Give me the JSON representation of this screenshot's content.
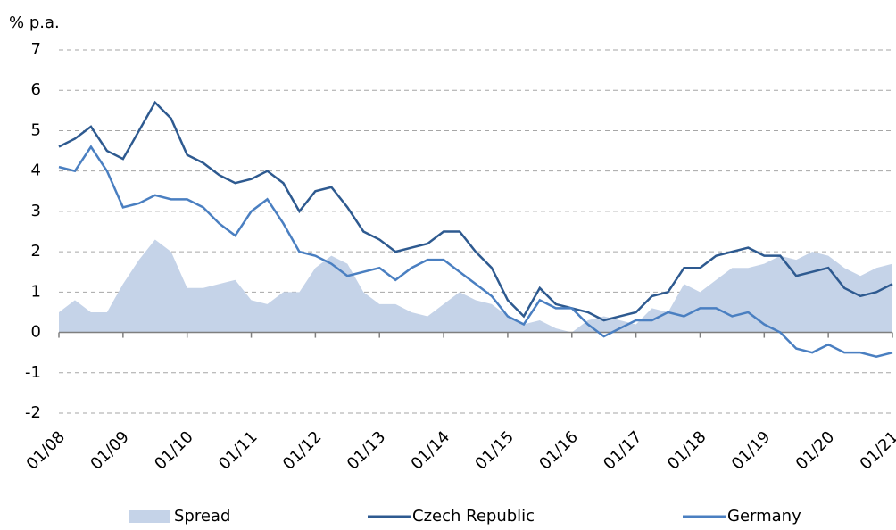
{
  "chart_data": {
    "type": "line",
    "y_label": "% p.a.",
    "categories": [
      "01/08",
      null,
      null,
      null,
      "01/09",
      null,
      null,
      null,
      "01/10",
      null,
      null,
      null,
      "01/11",
      null,
      null,
      null,
      "01/12",
      null,
      null,
      null,
      "01/13",
      null,
      null,
      null,
      "01/14",
      null,
      null,
      null,
      "01/15",
      null,
      null,
      null,
      "01/16",
      null,
      null,
      null,
      "01/17",
      null,
      null,
      null,
      "01/18",
      null,
      null,
      null,
      "01/19",
      null,
      null,
      null,
      "01/20",
      null,
      null,
      null,
      "01/21"
    ],
    "series": [
      {
        "name": "Spread",
        "kind": "area",
        "color": "#c5d3e8",
        "values": [
          0.5,
          0.8,
          0.5,
          0.5,
          1.2,
          1.8,
          2.3,
          2.0,
          1.1,
          1.1,
          1.2,
          1.3,
          0.8,
          0.7,
          1.0,
          1.0,
          1.6,
          1.9,
          1.7,
          1.0,
          0.7,
          0.7,
          0.5,
          0.4,
          0.7,
          1.0,
          0.8,
          0.7,
          0.4,
          0.2,
          0.3,
          0.1,
          0.0,
          0.3,
          0.4,
          0.3,
          0.2,
          0.6,
          0.5,
          1.2,
          1.0,
          1.3,
          1.6,
          1.6,
          1.7,
          1.9,
          1.8,
          2.0,
          1.9,
          1.6,
          1.4,
          1.6,
          1.7
        ]
      },
      {
        "name": "Czech Republic",
        "kind": "line",
        "color": "#2e5a90",
        "values": [
          4.6,
          4.8,
          5.1,
          4.5,
          4.3,
          5.0,
          5.7,
          5.3,
          4.4,
          4.2,
          3.9,
          3.7,
          3.8,
          4.0,
          3.7,
          3.0,
          3.5,
          3.6,
          3.1,
          2.5,
          2.3,
          2.0,
          2.1,
          2.2,
          2.5,
          2.5,
          2.0,
          1.6,
          0.8,
          0.4,
          1.1,
          0.7,
          0.6,
          0.5,
          0.3,
          0.4,
          0.5,
          0.9,
          1.0,
          1.6,
          1.6,
          1.9,
          2.0,
          2.1,
          1.9,
          1.9,
          1.4,
          1.5,
          1.6,
          1.1,
          0.9,
          1.0,
          1.2
        ]
      },
      {
        "name": "Germany",
        "kind": "line",
        "color": "#4a7fc1",
        "values": [
          4.1,
          4.0,
          4.6,
          4.0,
          3.1,
          3.2,
          3.4,
          3.3,
          3.3,
          3.1,
          2.7,
          2.4,
          3.0,
          3.3,
          2.7,
          2.0,
          1.9,
          1.7,
          1.4,
          1.5,
          1.6,
          1.3,
          1.6,
          1.8,
          1.8,
          1.5,
          1.2,
          0.9,
          0.4,
          0.2,
          0.8,
          0.6,
          0.6,
          0.2,
          -0.1,
          0.1,
          0.3,
          0.3,
          0.5,
          0.4,
          0.6,
          0.6,
          0.4,
          0.5,
          0.2,
          0.0,
          -0.4,
          -0.5,
          -0.3,
          -0.5,
          -0.5,
          -0.6,
          -0.5
        ]
      }
    ],
    "ylim": [
      -2,
      7
    ],
    "yticks": [
      -2,
      -1,
      0,
      1,
      2,
      3,
      4,
      5,
      6,
      7
    ],
    "grid": true,
    "legend": "bottom"
  }
}
